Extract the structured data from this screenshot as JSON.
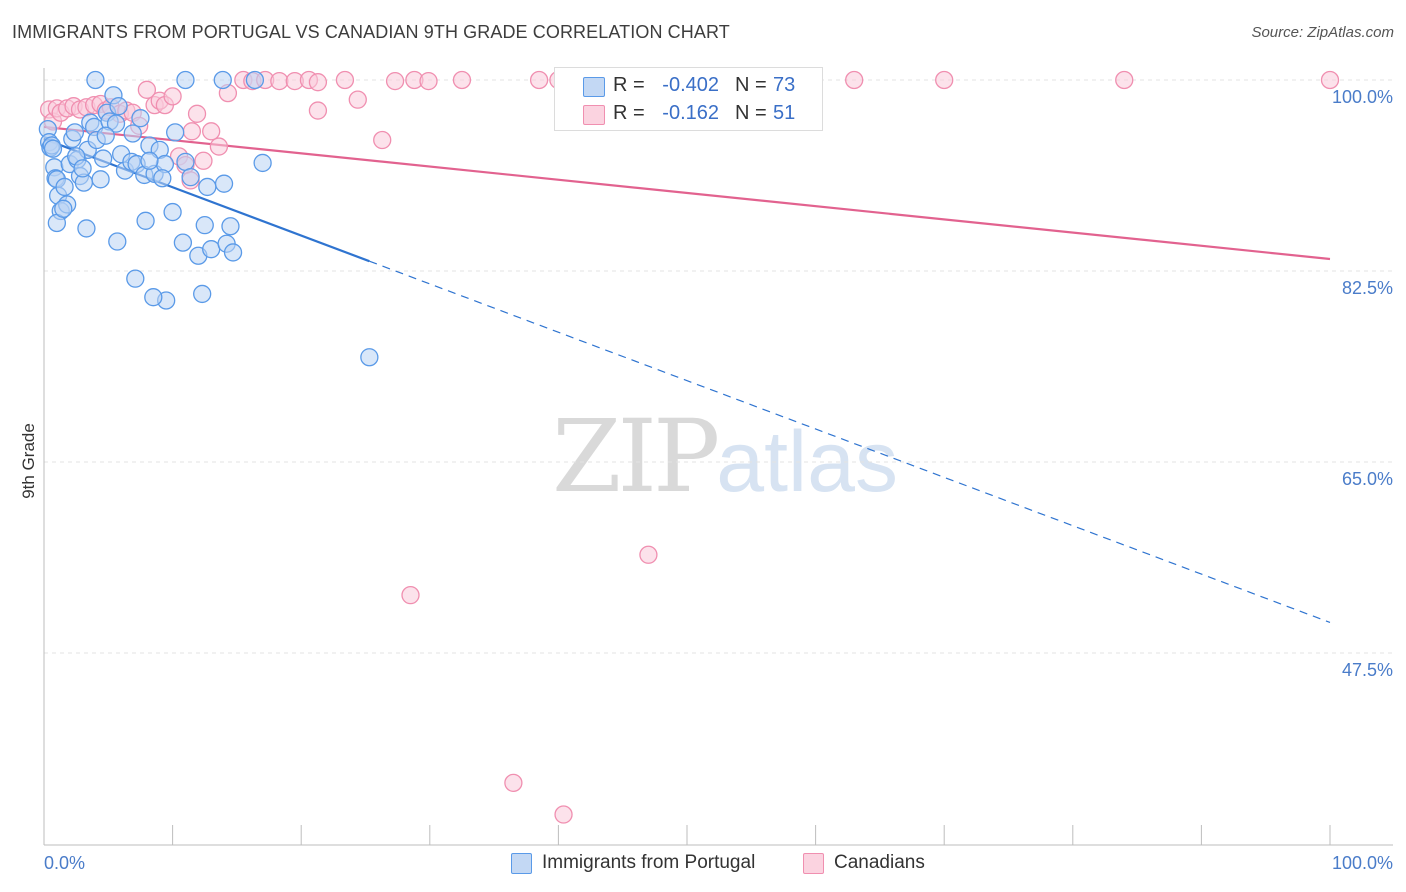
{
  "title": "IMMIGRANTS FROM PORTUGAL VS CANADIAN 9TH GRADE CORRELATION CHART",
  "source": "Source: ZipAtlas.com",
  "watermark": {
    "zip": "ZIP",
    "atlas": "atlas"
  },
  "colors": {
    "blue": "#5a9ae8",
    "blue_fill": "#b9d3f4",
    "blue_line": "#2f74d0",
    "pink": "#f08fb0",
    "pink_fill": "#f9cbda",
    "pink_line": "#e2628f",
    "axis_text": "#4a7cc9",
    "grid": "#e3e3e3"
  },
  "stats": [
    {
      "series": "Immigrants from Portugal",
      "r_label": "R =",
      "r_value": "-0.402",
      "n_label": "N =",
      "n_value": "73"
    },
    {
      "series": "Canadians",
      "r_label": "R =",
      "r_value": "-0.162",
      "n_label": "N =",
      "n_value": "51"
    }
  ],
  "legend": [
    {
      "label": "Immigrants from Portugal"
    },
    {
      "label": "Canadians"
    }
  ],
  "chart_data": {
    "type": "scatter",
    "xlabel": "",
    "ylabel": "9th Grade",
    "xlim": [
      0,
      100
    ],
    "ylim": [
      31.5,
      100
    ],
    "x_tick_labels": [
      "0.0%",
      "100.0%"
    ],
    "y_ticks": [
      100,
      82.5,
      65,
      47.5
    ],
    "y_tick_labels": [
      "100.0%",
      "82.5%",
      "65.0%",
      "47.5%"
    ],
    "grid": true,
    "series": [
      {
        "name": "Immigrants from Portugal",
        "color": "#5a9ae8",
        "trend": {
          "x0": 0,
          "y0": 94.6,
          "x1": 25.3,
          "y1": 83.4,
          "dash_to_x": 100,
          "dash_to_y": 50.3
        },
        "points": [
          [
            0.3,
            95.5
          ],
          [
            0.4,
            94.3
          ],
          [
            0.5,
            93.8
          ],
          [
            0.6,
            94.0
          ],
          [
            0.7,
            93.7
          ],
          [
            0.8,
            92.0
          ],
          [
            0.9,
            91.0
          ],
          [
            1.0,
            90.9
          ],
          [
            1.1,
            89.4
          ],
          [
            1.3,
            88.0
          ],
          [
            1.6,
            90.2
          ],
          [
            1.8,
            88.6
          ],
          [
            2.0,
            92.3
          ],
          [
            2.2,
            94.6
          ],
          [
            2.4,
            95.2
          ],
          [
            2.6,
            92.7
          ],
          [
            2.8,
            91.2
          ],
          [
            3.1,
            90.6
          ],
          [
            3.4,
            93.6
          ],
          [
            3.6,
            96.1
          ],
          [
            3.9,
            95.7
          ],
          [
            4.1,
            94.5
          ],
          [
            4.4,
            90.9
          ],
          [
            4.6,
            92.8
          ],
          [
            4.9,
            97.0
          ],
          [
            5.1,
            96.2
          ],
          [
            5.4,
            98.6
          ],
          [
            5.8,
            97.6
          ],
          [
            6.0,
            93.2
          ],
          [
            6.3,
            91.7
          ],
          [
            6.8,
            92.5
          ],
          [
            7.2,
            92.3
          ],
          [
            7.5,
            96.5
          ],
          [
            7.8,
            91.3
          ],
          [
            8.2,
            94.0
          ],
          [
            8.6,
            91.4
          ],
          [
            9.0,
            93.6
          ],
          [
            9.4,
            92.3
          ],
          [
            1.0,
            86.9
          ],
          [
            1.5,
            88.2
          ],
          [
            3.3,
            86.4
          ],
          [
            5.7,
            85.2
          ],
          [
            7.9,
            87.1
          ],
          [
            9.5,
            79.8
          ],
          [
            10.0,
            87.9
          ],
          [
            10.8,
            85.1
          ],
          [
            11.0,
            92.5
          ],
          [
            11.4,
            91.1
          ],
          [
            12.0,
            83.9
          ],
          [
            12.5,
            86.7
          ],
          [
            13.0,
            84.5
          ],
          [
            12.3,
            80.4
          ],
          [
            14.2,
            85.0
          ],
          [
            14.7,
            84.2
          ],
          [
            14.0,
            90.5
          ],
          [
            14.5,
            86.6
          ],
          [
            17.0,
            92.4
          ],
          [
            25.3,
            74.6
          ],
          [
            7.1,
            81.8
          ],
          [
            8.5,
            80.1
          ],
          [
            11.0,
            100.0
          ],
          [
            13.9,
            100.0
          ],
          [
            16.4,
            100.0
          ],
          [
            4.0,
            100.0
          ],
          [
            5.6,
            96.0
          ],
          [
            2.5,
            93.0
          ],
          [
            3.0,
            91.9
          ],
          [
            6.9,
            95.1
          ],
          [
            8.2,
            92.6
          ],
          [
            9.2,
            91.0
          ],
          [
            10.2,
            95.2
          ],
          [
            4.8,
            94.9
          ],
          [
            12.7,
            90.2
          ]
        ]
      },
      {
        "name": "Canadians",
        "color": "#f08fb0",
        "trend": {
          "x0": 0,
          "y0": 95.7,
          "x1": 100,
          "y1": 83.6
        },
        "points": [
          [
            0.4,
            97.3
          ],
          [
            0.7,
            96.2
          ],
          [
            1.0,
            97.4
          ],
          [
            1.3,
            97.0
          ],
          [
            1.8,
            97.4
          ],
          [
            2.3,
            97.6
          ],
          [
            2.8,
            97.3
          ],
          [
            3.3,
            97.5
          ],
          [
            3.9,
            97.7
          ],
          [
            4.4,
            97.8
          ],
          [
            4.8,
            97.2
          ],
          [
            5.2,
            97.5
          ],
          [
            5.9,
            96.9
          ],
          [
            6.4,
            97.2
          ],
          [
            6.9,
            97.0
          ],
          [
            7.4,
            95.8
          ],
          [
            8.0,
            99.1
          ],
          [
            8.6,
            97.7
          ],
          [
            9.0,
            98.1
          ],
          [
            9.4,
            97.7
          ],
          [
            10.0,
            98.5
          ],
          [
            10.5,
            93.0
          ],
          [
            11.0,
            92.2
          ],
          [
            11.4,
            90.8
          ],
          [
            11.9,
            96.9
          ],
          [
            12.4,
            92.6
          ],
          [
            13.0,
            95.3
          ],
          [
            13.6,
            93.9
          ],
          [
            14.3,
            98.8
          ],
          [
            15.5,
            100.0
          ],
          [
            16.2,
            99.9
          ],
          [
            17.2,
            100.0
          ],
          [
            18.3,
            99.9
          ],
          [
            19.5,
            99.9
          ],
          [
            20.6,
            100.0
          ],
          [
            21.3,
            99.8
          ],
          [
            23.4,
            100.0
          ],
          [
            24.4,
            98.2
          ],
          [
            27.3,
            99.9
          ],
          [
            28.8,
            100.0
          ],
          [
            29.9,
            99.9
          ],
          [
            32.5,
            100.0
          ],
          [
            38.5,
            100.0
          ],
          [
            40.0,
            100.0
          ],
          [
            43.0,
            100.0
          ],
          [
            47.0,
            56.5
          ],
          [
            63.0,
            100.0
          ],
          [
            70.0,
            100.0
          ],
          [
            84.0,
            100.0
          ],
          [
            100.0,
            100.0
          ],
          [
            28.5,
            52.8
          ]
        ],
        "outliers": [
          [
            36.5,
            35.6
          ],
          [
            40.4,
            32.7
          ],
          [
            21.3,
            97.2
          ],
          [
            26.3,
            94.5
          ],
          [
            11.5,
            95.3
          ]
        ]
      }
    ]
  }
}
